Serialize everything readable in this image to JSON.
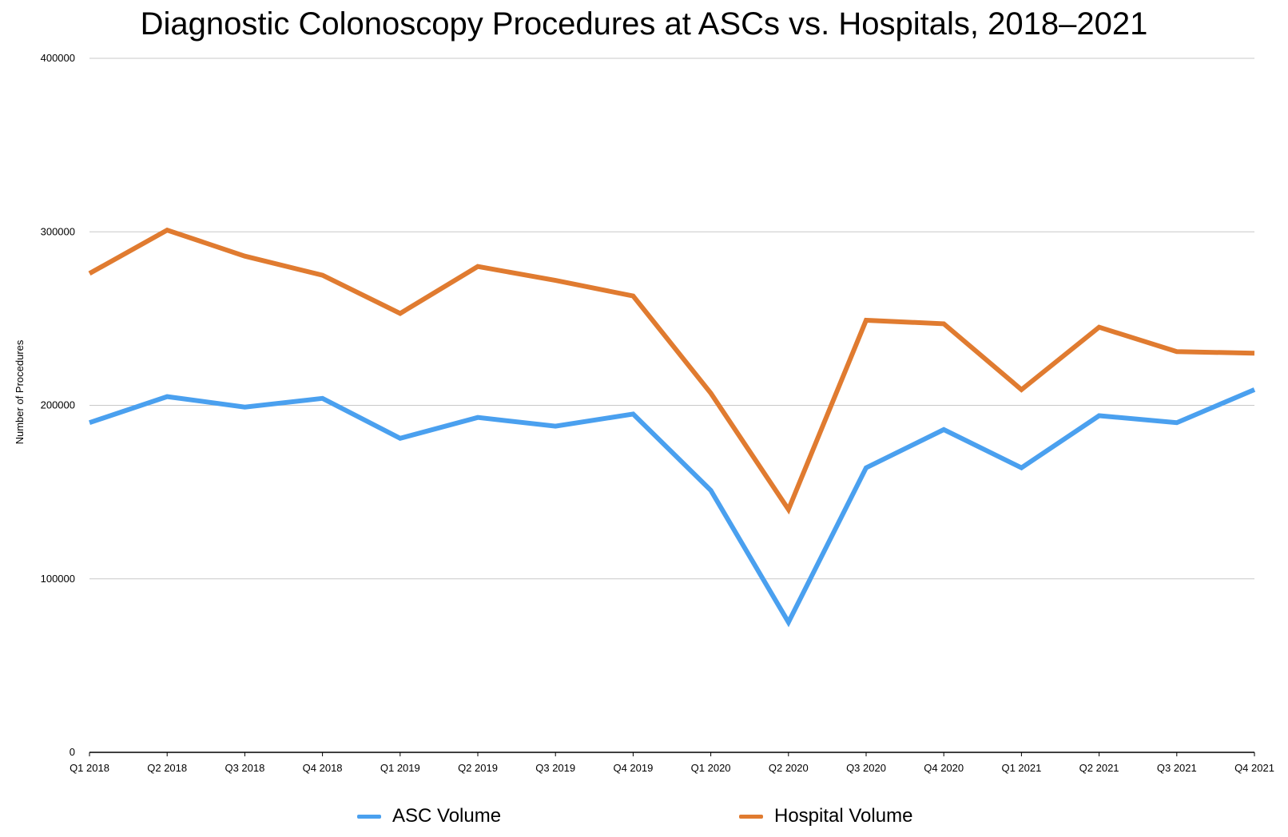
{
  "chart_data": {
    "type": "line",
    "title": "Diagnostic Colonoscopy Procedures at ASCs vs. Hospitals, 2018–2021",
    "xlabel": "",
    "ylabel": "Number of Procedures",
    "ylim": [
      0,
      400000
    ],
    "yticks": [
      "0",
      "100000",
      "200000",
      "300000",
      "400000"
    ],
    "grid": true,
    "legend_position": "bottom",
    "categories": [
      "Q1 2018",
      "Q2 2018",
      "Q3 2018",
      "Q4 2018",
      "Q1 2019",
      "Q2 2019",
      "Q3 2019",
      "Q4 2019",
      "Q1 2020",
      "Q2 2020",
      "Q3 2020",
      "Q4 2020",
      "Q1 2021",
      "Q2 2021",
      "Q3 2021",
      "Q4 2021"
    ],
    "series": [
      {
        "name": "ASC Volume",
        "color": "#4aa0ef",
        "values": [
          190000,
          205000,
          199000,
          204000,
          181000,
          193000,
          188000,
          195000,
          151000,
          75000,
          164000,
          186000,
          164000,
          194000,
          190000,
          209000
        ]
      },
      {
        "name": "Hospital Volume",
        "color": "#e07b30",
        "values": [
          276000,
          301000,
          286000,
          275000,
          253000,
          280000,
          272000,
          263000,
          207000,
          140000,
          249000,
          247000,
          209000,
          245000,
          231000,
          230000
        ]
      }
    ]
  }
}
